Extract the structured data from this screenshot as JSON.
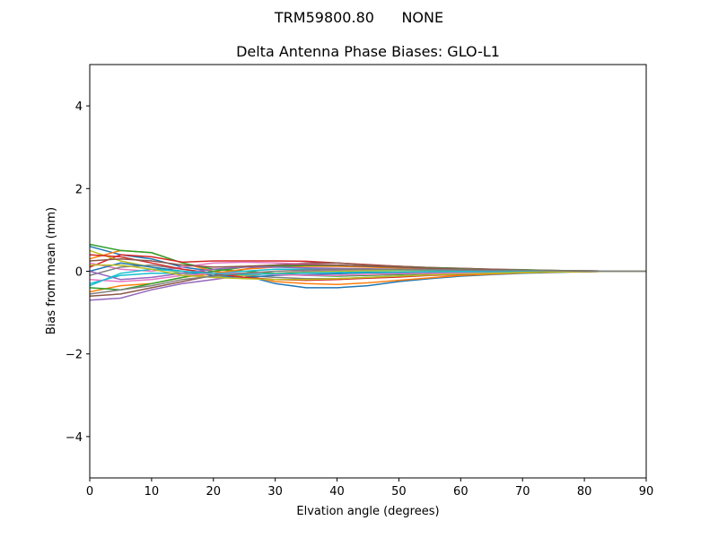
{
  "figure": {
    "suptitle": "TRM59800.80      NONE",
    "title": "Delta Antenna Phase Biases: GLO-L1"
  },
  "chart_data": {
    "type": "line",
    "title": "Delta Antenna Phase Biases: GLO-L1",
    "suptitle": "TRM59800.80      NONE",
    "xlabel": "Elvation angle (degrees)",
    "ylabel": "Bias from mean (mm)",
    "xlim": [
      0,
      90
    ],
    "ylim": [
      -5,
      5
    ],
    "xticks": [
      0,
      10,
      20,
      30,
      40,
      50,
      60,
      70,
      80,
      90
    ],
    "yticks": [
      -4,
      -2,
      0,
      2,
      4
    ],
    "ytick_labels": [
      "−4",
      "−2",
      "0",
      "2",
      "4"
    ],
    "grid": false,
    "legend": false,
    "x": [
      0,
      5,
      10,
      15,
      20,
      25,
      30,
      35,
      40,
      45,
      50,
      55,
      60,
      65,
      70,
      75,
      80,
      85,
      90
    ],
    "series": [
      {
        "name": "s1",
        "color": "#1f77b4",
        "values": [
          0.6,
          0.4,
          0.3,
          0.1,
          0.0,
          -0.1,
          -0.3,
          -0.4,
          -0.4,
          -0.35,
          -0.25,
          -0.18,
          -0.12,
          -0.08,
          -0.05,
          -0.03,
          -0.01,
          0.0,
          0.0
        ]
      },
      {
        "name": "s2",
        "color": "#ff7f0e",
        "values": [
          0.3,
          0.5,
          0.45,
          0.2,
          0.0,
          -0.1,
          -0.25,
          -0.3,
          -0.32,
          -0.28,
          -0.22,
          -0.16,
          -0.1,
          -0.07,
          -0.04,
          -0.02,
          -0.01,
          0.0,
          0.0
        ]
      },
      {
        "name": "s3",
        "color": "#2ca02c",
        "values": [
          0.65,
          0.5,
          0.45,
          0.2,
          0.05,
          0.0,
          -0.05,
          -0.1,
          -0.12,
          -0.1,
          -0.08,
          -0.06,
          -0.04,
          -0.03,
          -0.02,
          -0.01,
          0.0,
          0.0,
          0.0
        ]
      },
      {
        "name": "s4",
        "color": "#d62728",
        "values": [
          0.1,
          0.4,
          0.35,
          0.22,
          0.25,
          0.25,
          0.25,
          0.24,
          0.2,
          0.16,
          0.12,
          0.09,
          0.07,
          0.05,
          0.03,
          0.02,
          0.01,
          0.0,
          0.0
        ]
      },
      {
        "name": "s5",
        "color": "#9467bd",
        "values": [
          -0.7,
          -0.65,
          -0.45,
          -0.3,
          -0.2,
          -0.1,
          -0.05,
          0.0,
          0.02,
          0.03,
          0.03,
          0.03,
          0.02,
          0.02,
          0.01,
          0.01,
          0.0,
          0.0,
          0.0
        ]
      },
      {
        "name": "s6",
        "color": "#8c564b",
        "values": [
          -0.6,
          -0.55,
          -0.4,
          -0.25,
          -0.1,
          0.05,
          0.15,
          0.2,
          0.2,
          0.15,
          0.12,
          0.09,
          0.07,
          0.05,
          0.04,
          0.02,
          0.01,
          0.0,
          0.0
        ]
      },
      {
        "name": "s7",
        "color": "#e377c2",
        "values": [
          0.2,
          0.05,
          0.0,
          0.1,
          0.2,
          0.22,
          0.2,
          0.18,
          0.15,
          0.12,
          0.1,
          0.08,
          0.06,
          0.04,
          0.03,
          0.02,
          0.01,
          0.0,
          0.0
        ]
      },
      {
        "name": "s8",
        "color": "#7f7f7f",
        "values": [
          -0.1,
          0.1,
          0.15,
          0.05,
          -0.05,
          -0.1,
          -0.15,
          -0.18,
          -0.18,
          -0.15,
          -0.12,
          -0.09,
          -0.07,
          -0.05,
          -0.03,
          -0.02,
          -0.01,
          0.0,
          0.0
        ]
      },
      {
        "name": "s9",
        "color": "#bcbd22",
        "values": [
          0.5,
          0.25,
          0.1,
          -0.05,
          -0.15,
          -0.1,
          -0.05,
          -0.02,
          0.0,
          0.01,
          0.02,
          0.02,
          0.01,
          0.01,
          0.01,
          0.0,
          0.0,
          0.0,
          0.0
        ]
      },
      {
        "name": "s10",
        "color": "#17becf",
        "values": [
          -0.3,
          -0.1,
          -0.05,
          -0.05,
          -0.05,
          0.0,
          0.05,
          0.05,
          0.05,
          0.05,
          0.04,
          0.03,
          0.02,
          0.02,
          0.01,
          0.01,
          0.0,
          0.0,
          0.0
        ]
      },
      {
        "name": "s11",
        "color": "#1f77b4",
        "values": [
          0.0,
          0.2,
          0.1,
          0.0,
          -0.1,
          -0.15,
          -0.1,
          -0.08,
          -0.06,
          -0.04,
          -0.03,
          -0.02,
          -0.02,
          -0.01,
          -0.01,
          0.0,
          0.0,
          0.0,
          0.0
        ]
      },
      {
        "name": "s12",
        "color": "#ff7f0e",
        "values": [
          -0.5,
          -0.35,
          -0.3,
          -0.15,
          -0.05,
          0.05,
          0.1,
          0.12,
          0.12,
          0.1,
          0.08,
          0.06,
          0.05,
          0.03,
          0.02,
          0.01,
          0.01,
          0.0,
          0.0
        ]
      },
      {
        "name": "s13",
        "color": "#2ca02c",
        "values": [
          -0.4,
          -0.45,
          -0.3,
          -0.15,
          0.0,
          0.1,
          0.12,
          0.14,
          0.14,
          0.12,
          0.1,
          0.08,
          0.06,
          0.04,
          0.03,
          0.02,
          0.01,
          0.0,
          0.0
        ]
      },
      {
        "name": "s14",
        "color": "#d62728",
        "values": [
          0.4,
          0.35,
          0.2,
          0.05,
          -0.05,
          -0.15,
          -0.2,
          -0.22,
          -0.2,
          -0.17,
          -0.14,
          -0.1,
          -0.08,
          -0.05,
          -0.03,
          -0.02,
          -0.01,
          0.0,
          0.0
        ]
      },
      {
        "name": "s15",
        "color": "#9467bd",
        "values": [
          0.0,
          -0.2,
          -0.15,
          -0.05,
          0.05,
          0.1,
          0.1,
          0.08,
          0.07,
          0.06,
          0.05,
          0.04,
          0.03,
          0.02,
          0.01,
          0.01,
          0.0,
          0.0,
          0.0
        ]
      },
      {
        "name": "s16",
        "color": "#8c564b",
        "values": [
          0.25,
          0.3,
          0.25,
          0.15,
          0.1,
          0.12,
          0.15,
          0.16,
          0.15,
          0.12,
          0.1,
          0.07,
          0.05,
          0.04,
          0.02,
          0.01,
          0.01,
          0.0,
          0.0
        ]
      },
      {
        "name": "s17",
        "color": "#e377c2",
        "values": [
          -0.2,
          -0.25,
          -0.2,
          -0.1,
          -0.05,
          -0.05,
          -0.08,
          -0.1,
          -0.1,
          -0.08,
          -0.06,
          -0.05,
          -0.04,
          -0.03,
          -0.02,
          -0.01,
          0.0,
          0.0,
          0.0
        ]
      },
      {
        "name": "s18",
        "color": "#17becf",
        "values": [
          -0.35,
          -0.05,
          0.05,
          0.0,
          -0.05,
          -0.08,
          -0.06,
          -0.04,
          -0.03,
          -0.02,
          -0.02,
          -0.01,
          -0.01,
          -0.01,
          0.0,
          0.0,
          0.0,
          0.0,
          0.0
        ]
      },
      {
        "name": "s19",
        "color": "#bcbd22",
        "values": [
          0.15,
          0.15,
          0.05,
          -0.1,
          -0.15,
          -0.18,
          -0.2,
          -0.2,
          -0.18,
          -0.15,
          -0.12,
          -0.09,
          -0.07,
          -0.05,
          -0.03,
          -0.02,
          -0.01,
          0.0,
          0.0
        ]
      },
      {
        "name": "s20",
        "color": "#7f7f7f",
        "values": [
          -0.55,
          -0.45,
          -0.35,
          -0.2,
          -0.12,
          -0.05,
          0.0,
          0.03,
          0.05,
          0.05,
          0.05,
          0.04,
          0.03,
          0.02,
          0.02,
          0.01,
          0.0,
          0.0,
          0.0
        ]
      }
    ]
  }
}
